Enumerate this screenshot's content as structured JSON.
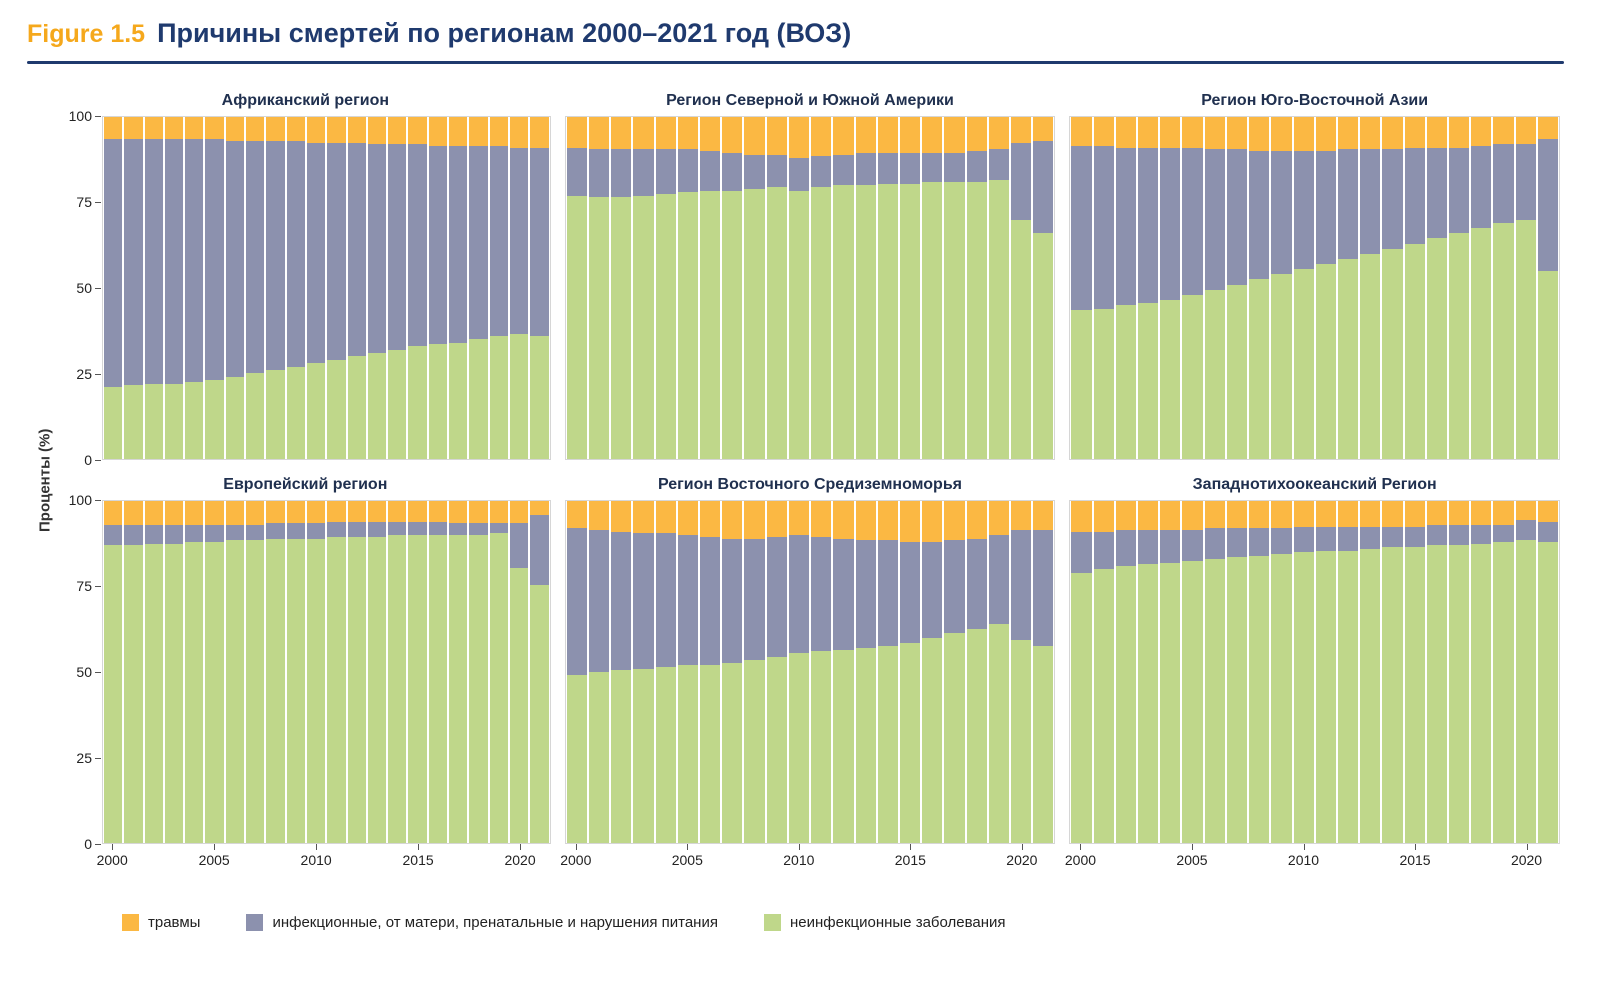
{
  "header": {
    "figure_label": "Figure 1.5",
    "title": "Причины смертей по регионам 2000–2021 год (ВОЗ)"
  },
  "axis": {
    "y_label": "Проценты (%)",
    "y_ticks": [
      100,
      75,
      50,
      25,
      0
    ],
    "x_tick_years": [
      2000,
      2005,
      2010,
      2015,
      2020
    ]
  },
  "colors": {
    "injuries": "#FBB843",
    "communicable": "#8C91AE",
    "noncommunicable": "#BFD78A",
    "title_navy": "#1F3A6E",
    "figure_orange": "#F5A81C"
  },
  "legend": {
    "items": [
      {
        "label": "травмы",
        "color": "#FBB843"
      },
      {
        "label": "инфекционные, от матери, пренатальные и нарушения питания",
        "color": "#8C91AE"
      },
      {
        "label": "неинфекционные заболевания",
        "color": "#BFD78A"
      }
    ]
  },
  "chart_data": {
    "type": "bar",
    "stacked": true,
    "percent": true,
    "ylim": [
      0,
      100
    ],
    "x": [
      2000,
      2001,
      2002,
      2003,
      2004,
      2005,
      2006,
      2007,
      2008,
      2009,
      2010,
      2011,
      2012,
      2013,
      2014,
      2015,
      2016,
      2017,
      2018,
      2019,
      2020,
      2021
    ],
    "series_names": [
      "неинфекционные заболевания",
      "инфекционные, от матери, пренатальные и нарушения питания",
      "травмы"
    ],
    "panels": [
      {
        "title": "Африканский регион",
        "noncommunicable": [
          21,
          21.5,
          22,
          22,
          22.5,
          23,
          24,
          25,
          26,
          27,
          28,
          29,
          30,
          31,
          32,
          33,
          33.5,
          34,
          35,
          36,
          36.5,
          36
        ],
        "communicable": [
          72.5,
          72,
          71.5,
          71.5,
          71,
          70.5,
          69,
          68,
          67,
          66,
          64.5,
          63.5,
          62.5,
          61,
          60,
          59,
          58,
          57.5,
          56.5,
          55.5,
          54.5,
          55
        ],
        "injuries": [
          6.5,
          6.5,
          6.5,
          6.5,
          6.5,
          6.5,
          7,
          7,
          7,
          7,
          7.5,
          7.5,
          7.5,
          8,
          8,
          8,
          8.5,
          8.5,
          8.5,
          8.5,
          9,
          9
        ]
      },
      {
        "title": "Регион Северной и Южной Америки",
        "noncommunicable": [
          77,
          76.5,
          76.5,
          77,
          77.5,
          78,
          78.5,
          78.5,
          79,
          79.5,
          78.5,
          79.5,
          80,
          80,
          80.5,
          80.5,
          81,
          81,
          81,
          81.5,
          70,
          66
        ],
        "communicable": [
          14,
          14,
          14,
          13.5,
          13,
          12.5,
          11.5,
          11,
          10,
          9.5,
          9.5,
          9,
          9,
          9.5,
          9,
          9,
          8.5,
          8.5,
          9,
          9,
          22.5,
          27
        ],
        "injuries": [
          9,
          9.5,
          9.5,
          9.5,
          9.5,
          9.5,
          10,
          10.5,
          11,
          11,
          12,
          11.5,
          11,
          10.5,
          10.5,
          10.5,
          10.5,
          10.5,
          10,
          9.5,
          7.5,
          7
        ]
      },
      {
        "title": "Регион Юго-Восточной Азии",
        "noncommunicable": [
          43.5,
          44,
          45,
          45.5,
          46.5,
          48,
          49.5,
          51,
          52.5,
          54,
          55.5,
          57,
          58.5,
          60,
          61.5,
          63,
          64.5,
          66,
          67.5,
          69,
          70,
          55
        ],
        "communicable": [
          48,
          47.5,
          46,
          45.5,
          44.5,
          43,
          41,
          39.5,
          37.5,
          36,
          34.5,
          33,
          32,
          30.5,
          29,
          28,
          26.5,
          25,
          24,
          23,
          22,
          38.5
        ],
        "injuries": [
          8.5,
          8.5,
          9,
          9,
          9,
          9,
          9.5,
          9.5,
          10,
          10,
          10,
          10,
          9.5,
          9.5,
          9.5,
          9,
          9,
          9,
          8.5,
          8,
          8,
          6.5
        ]
      },
      {
        "title": "Европейский регион",
        "noncommunicable": [
          87,
          87,
          87.5,
          87.5,
          88,
          88,
          88.5,
          88.5,
          89,
          89,
          89,
          89.5,
          89.5,
          89.5,
          90,
          90,
          90,
          90,
          90,
          90.5,
          80.5,
          75.5
        ],
        "communicable": [
          6,
          6,
          5.5,
          5.5,
          5,
          5,
          4.5,
          4.5,
          4.5,
          4.5,
          4.5,
          4.5,
          4.5,
          4.5,
          4,
          4,
          4,
          3.5,
          3.5,
          3,
          13,
          20.5
        ],
        "injuries": [
          7,
          7,
          7,
          7,
          7,
          7,
          7,
          7,
          6.5,
          6.5,
          6.5,
          6,
          6,
          6,
          6,
          6,
          6,
          6.5,
          6.5,
          6.5,
          6.5,
          4
        ]
      },
      {
        "title": "Регион Восточного Средиземноморья",
        "noncommunicable": [
          49,
          50,
          50.5,
          51,
          51.5,
          52,
          52,
          52.5,
          53.5,
          54.5,
          55.5,
          56,
          56.5,
          57,
          57.5,
          58.5,
          60,
          61.5,
          62.5,
          64,
          59.5,
          57.5
        ],
        "communicable": [
          43,
          41.5,
          40.5,
          39.5,
          39,
          38,
          37.5,
          36.5,
          35.5,
          35,
          34.5,
          33.5,
          32.5,
          31.5,
          31,
          29.5,
          28,
          27,
          26.5,
          26,
          32,
          34
        ],
        "injuries": [
          8,
          8.5,
          9,
          9.5,
          9.5,
          10,
          10.5,
          11,
          11,
          10.5,
          10,
          10.5,
          11,
          11.5,
          11.5,
          12,
          12,
          11.5,
          11,
          10,
          8.5,
          8.5
        ]
      },
      {
        "title": "Западнотихоокеанский Регион",
        "noncommunicable": [
          79,
          80,
          81,
          81.5,
          82,
          82.5,
          83,
          83.5,
          84,
          84.5,
          85,
          85.5,
          85.5,
          86,
          86.5,
          86.5,
          87,
          87,
          87.5,
          88,
          88.5,
          88
        ],
        "communicable": [
          12,
          11,
          10.5,
          10,
          9.5,
          9,
          9,
          8.5,
          8,
          7.5,
          7.5,
          7,
          7,
          6.5,
          6,
          6,
          6,
          6,
          5.5,
          5,
          6,
          6
        ],
        "injuries": [
          9,
          9,
          8.5,
          8.5,
          8.5,
          8.5,
          8,
          8,
          8,
          8,
          7.5,
          7.5,
          7.5,
          7.5,
          7.5,
          7.5,
          7,
          7,
          7,
          7,
          5.5,
          6
        ]
      }
    ]
  }
}
